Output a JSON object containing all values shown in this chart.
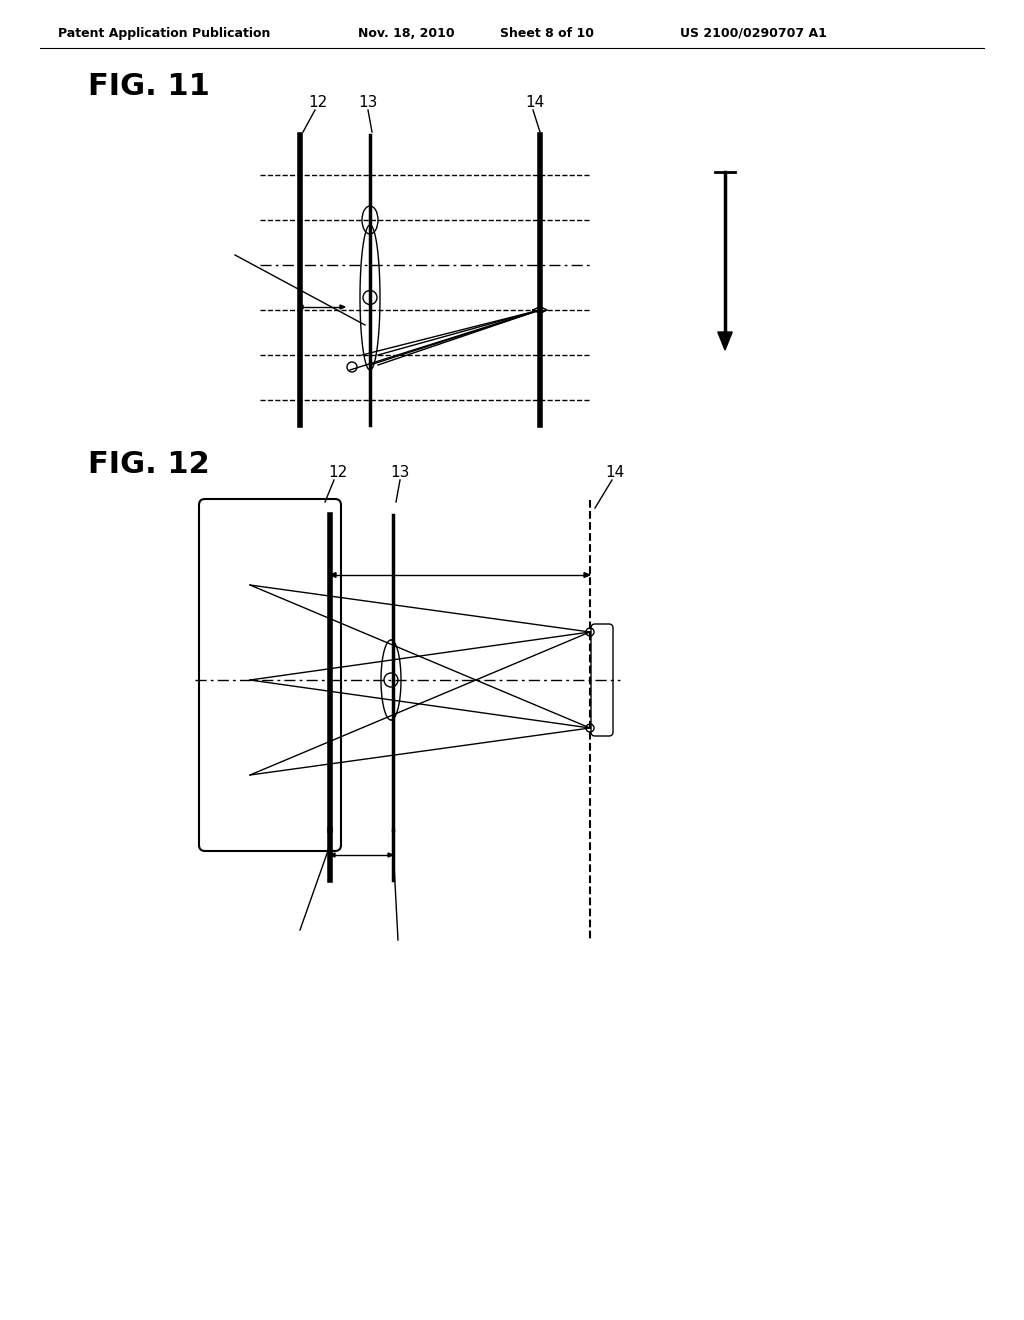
{
  "background_color": "#ffffff",
  "header_text": "Patent Application Publication",
  "header_date": "Nov. 18, 2010",
  "header_sheet": "Sheet 8 of 10",
  "header_patent": "US 2100/0290707 A1",
  "fig11_label": "FIG. 11",
  "fig12_label": "FIG. 12",
  "label_12": "12",
  "label_13": "13",
  "label_14": "14",
  "line_color": "#000000",
  "lw": 1.5,
  "thin_lw": 1.0
}
